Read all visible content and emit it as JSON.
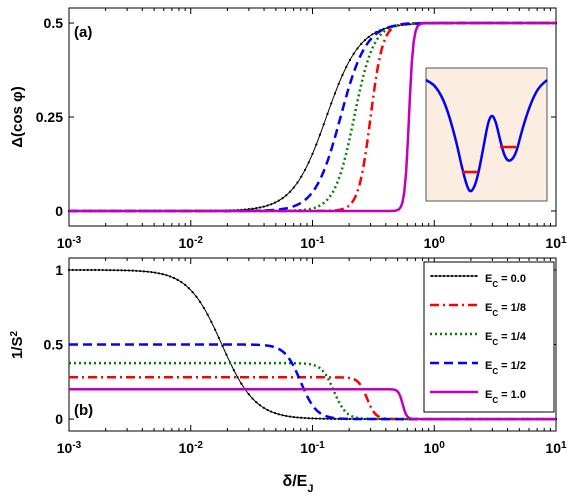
{
  "figure": {
    "xlabel_main": "δ/E",
    "xlabel_sub": "J"
  },
  "chart_data": [
    {
      "id": "a",
      "type": "line",
      "panel_label": "(a)",
      "ylabel": "Δ(cos φ)",
      "xscale": "log",
      "xlim": [
        0.001,
        10
      ],
      "ylim": [
        -0.04,
        0.54
      ],
      "xticks": [
        {
          "base": "10",
          "exp": "-3",
          "value": 0.001
        },
        {
          "base": "10",
          "exp": "-2",
          "value": 0.01
        },
        {
          "base": "10",
          "exp": "-1",
          "value": 0.1
        },
        {
          "base": "10",
          "exp": "0",
          "value": 1
        },
        {
          "base": "10",
          "exp": "1",
          "value": 10
        }
      ],
      "yticks": [
        {
          "label": "0",
          "value": 0
        },
        {
          "label": "0.25",
          "value": 0.25
        },
        {
          "label": "0.5",
          "value": 0.5
        }
      ],
      "series": [
        {
          "key": "ec0",
          "color": "#000000",
          "style": "dot-marker",
          "x0": 0.13,
          "w": 0.55,
          "lo": 0.0,
          "hi": 0.5
        },
        {
          "key": "ec18",
          "color": "#ff0000",
          "style": "dashdot",
          "x0": 0.3,
          "w": 0.2,
          "lo": 0.0,
          "hi": 0.5
        },
        {
          "key": "ec14",
          "color": "#008000",
          "style": "dotted",
          "x0": 0.22,
          "w": 0.32,
          "lo": 0.0,
          "hi": 0.5
        },
        {
          "key": "ec12",
          "color": "#0000ff",
          "style": "dashed",
          "x0": 0.17,
          "w": 0.42,
          "lo": 0.0,
          "hi": 0.5
        },
        {
          "key": "ec10",
          "color": "#c000c0",
          "style": "solid",
          "x0": 0.62,
          "w": 0.07,
          "lo": 0.0,
          "hi": 0.5
        }
      ],
      "inset": {
        "background": "#fbeee0",
        "curve_color": "#0000ff",
        "marker_color": "#ff0000",
        "description": "double-well potential"
      }
    },
    {
      "id": "b",
      "type": "line",
      "panel_label": "(b)",
      "ylabel_main": "1/S",
      "ylabel_sup": "2",
      "xscale": "log",
      "xlim": [
        0.001,
        10
      ],
      "ylim": [
        -0.08,
        1.08
      ],
      "xticks": [
        {
          "base": "10",
          "exp": "-3",
          "value": 0.001
        },
        {
          "base": "10",
          "exp": "-2",
          "value": 0.01
        },
        {
          "base": "10",
          "exp": "-1",
          "value": 0.1
        },
        {
          "base": "10",
          "exp": "0",
          "value": 1
        },
        {
          "base": "10",
          "exp": "1",
          "value": 10
        }
      ],
      "yticks": [
        {
          "label": "0",
          "value": 0
        },
        {
          "label": "0.5",
          "value": 0.5
        },
        {
          "label": "1",
          "value": 1
        }
      ],
      "legend_position": "top-right",
      "series": [
        {
          "key": "ec0",
          "name_main": "E",
          "name_sub": "C",
          "name_tail": " = 0.0",
          "color": "#000000",
          "style": "dot-marker",
          "x0": 0.018,
          "w": 0.55,
          "lo": 0.0,
          "hi": 1.0
        },
        {
          "key": "ec18",
          "name_main": "E",
          "name_sub": "C",
          "name_tail": " = 1/8",
          "color": "#ff0000",
          "style": "dashdot",
          "x0": 0.28,
          "w": 0.14,
          "lo": 0.0,
          "hi": 0.28
        },
        {
          "key": "ec14",
          "name_main": "E",
          "name_sub": "C",
          "name_tail": " = 1/4",
          "color": "#008000",
          "style": "dotted",
          "x0": 0.15,
          "w": 0.2,
          "lo": 0.0,
          "hi": 0.375
        },
        {
          "key": "ec12",
          "name_main": "E",
          "name_sub": "C",
          "name_tail": " = 1/2",
          "color": "#0000ff",
          "style": "dashed",
          "x0": 0.08,
          "w": 0.26,
          "lo": 0.0,
          "hi": 0.5
        },
        {
          "key": "ec10",
          "name_main": "E",
          "name_sub": "C",
          "name_tail": " = 1.0",
          "color": "#c000c0",
          "style": "solid",
          "x0": 0.55,
          "w": 0.065,
          "lo": 0.0,
          "hi": 0.2
        }
      ]
    }
  ]
}
